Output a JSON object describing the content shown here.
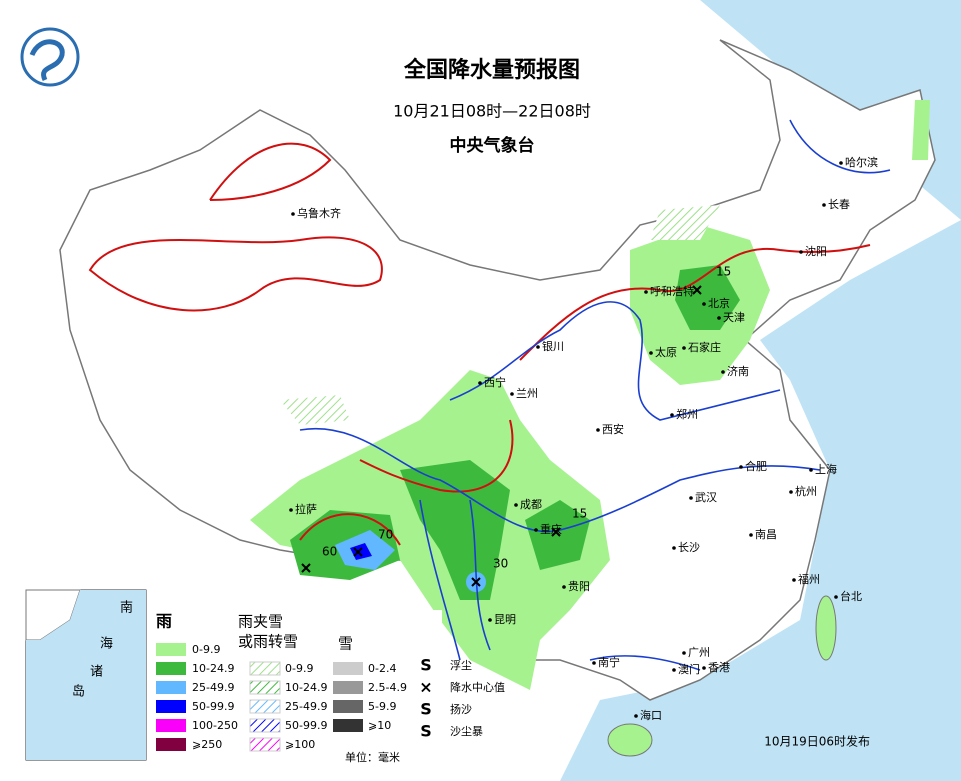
{
  "header": {
    "title": "全国降水量预报图",
    "subtitle": "10月21日08时—22日08时",
    "issuer": "中央气象台"
  },
  "cities": [
    "乌鲁木齐",
    "哈尔滨",
    "长春",
    "沈阳",
    "呼和浩特",
    "北京",
    "天津",
    "石家庄",
    "太原",
    "济南",
    "银川",
    "西宁",
    "兰州",
    "郑州",
    "西安",
    "合肥",
    "上海",
    "武汉",
    "杭州",
    "成都",
    "重庆",
    "拉萨",
    "长沙",
    "南昌",
    "贵阳",
    "昆明",
    "福州",
    "台北",
    "南宁",
    "广州",
    "澳门",
    "香港",
    "海口"
  ],
  "centers": [
    15,
    70,
    60,
    30,
    15
  ],
  "inset": {
    "labels": [
      "南",
      "海",
      "诸",
      "岛"
    ]
  },
  "legend": {
    "rain": {
      "title": "雨",
      "items": [
        "0-9.9",
        "10-24.9",
        "25-49.9",
        "50-99.9",
        "100-250",
        "⩾250"
      ]
    },
    "sleet": {
      "title": [
        "雨夹雪",
        "或雨转雪"
      ],
      "items": [
        "0-9.9",
        "10-24.9",
        "25-49.9",
        "50-99.9",
        "⩾100"
      ]
    },
    "snow": {
      "title": "雪",
      "items": [
        "0-2.4",
        "2.5-4.9",
        "5-9.9",
        "⩾10"
      ]
    },
    "symbols": [
      "浮尘",
      "降水中心值",
      "扬沙",
      "沙尘暴"
    ],
    "unit": "单位：毫米"
  },
  "footer": "10月19日06时发布"
}
